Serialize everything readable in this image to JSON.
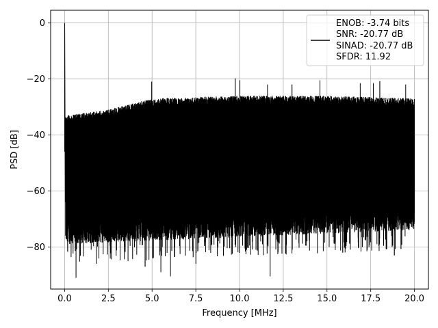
{
  "chart_data": {
    "type": "line",
    "title": "",
    "xlabel": "Frequency [MHz]",
    "ylabel": "PSD [dB]",
    "xlim": [
      -0.8,
      20.8
    ],
    "ylim": [
      -95,
      4.5
    ],
    "xticks": [
      0.0,
      2.5,
      5.0,
      7.5,
      10.0,
      12.5,
      15.0,
      17.5,
      20.0
    ],
    "xtick_labels": [
      "0.0",
      "2.5",
      "5.0",
      "7.5",
      "10.0",
      "12.5",
      "15.0",
      "17.5",
      "20.0"
    ],
    "yticks": [
      0,
      -20,
      -40,
      -60,
      -80
    ],
    "ytick_labels": [
      "0",
      "−20",
      "−40",
      "−60",
      "−80"
    ],
    "grid": true,
    "legend_position": "top-right",
    "series": [
      {
        "color": "#000000",
        "x_range": [
          0,
          20
        ],
        "peak_at_zero_db": 0,
        "upper_envelope": {
          "x": [
            0.1,
            2.5,
            5,
            10,
            15,
            20
          ],
          "y": [
            -33,
            -31,
            -27,
            -26,
            -26,
            -27
          ]
        },
        "typical_low_envelope": {
          "x": [
            0.1,
            20
          ],
          "y": [
            -76,
            -71
          ]
        },
        "spurs": [
          {
            "x": 4.98,
            "y": -21
          },
          {
            "x": 9.75,
            "y": -19.8
          },
          {
            "x": 10.02,
            "y": -20.5
          },
          {
            "x": 11.6,
            "y": -22
          },
          {
            "x": 13.0,
            "y": -22
          },
          {
            "x": 14.6,
            "y": -20.5
          },
          {
            "x": 16.9,
            "y": -21.5
          },
          {
            "x": 17.65,
            "y": -21.5
          },
          {
            "x": 18.02,
            "y": -20.8
          },
          {
            "x": 19.5,
            "y": -22
          }
        ],
        "deep_dips": [
          {
            "x": 0.65,
            "y": -91
          },
          {
            "x": 4.6,
            "y": -87
          },
          {
            "x": 5.5,
            "y": -89
          },
          {
            "x": 6.05,
            "y": -90.5
          },
          {
            "x": 7.5,
            "y": -86
          },
          {
            "x": 11.75,
            "y": -90.5
          },
          {
            "x": 1.8,
            "y": -86
          },
          {
            "x": 15.9,
            "y": -82
          },
          {
            "x": 18.85,
            "y": -83
          }
        ]
      }
    ]
  },
  "legend": {
    "lines": [
      "ENOB: -3.74 bits",
      "SNR: -20.77 dB",
      "SINAD: -20.77 dB",
      "SFDR: 11.92"
    ],
    "line_color": "#000000"
  }
}
